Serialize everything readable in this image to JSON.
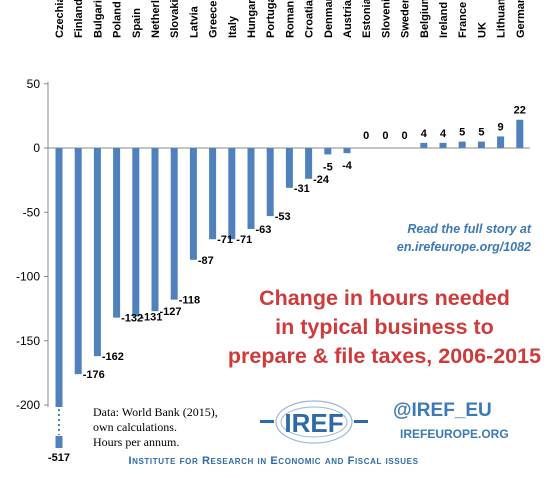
{
  "chart_data": {
    "type": "bar",
    "title": "Change in hours needed in typical business to prepare & file taxes, 2006-2015",
    "title_lines": [
      "Change in hours needed",
      "in typical business to",
      "prepare & file taxes, 2006-2015"
    ],
    "categories": [
      "Czechia",
      "Finland",
      "Bulgaria",
      "Poland",
      "Spain",
      "Netherlands",
      "Slovakia",
      "Latvia",
      "Greece",
      "Italy",
      "Hungary",
      "Portugal",
      "Romania",
      "Croatia",
      "Denmark",
      "Austria",
      "Estonia",
      "Slovenia",
      "Sweden",
      "Belgium",
      "Ireland",
      "France",
      "UK",
      "Lithuania",
      "Germany"
    ],
    "values": [
      -517,
      -176,
      -162,
      -132,
      -131,
      -127,
      -118,
      -87,
      -71,
      -71,
      -63,
      -53,
      -31,
      -24,
      -5,
      -4,
      0,
      0,
      0,
      4,
      4,
      5,
      5,
      9,
      22
    ],
    "labels": [
      "-517",
      "-176",
      "-162",
      "-132",
      "-131",
      "-127",
      "-118",
      "-87",
      "-71",
      "-71",
      "-63",
      "-53",
      "-31",
      "-24",
      "-5",
      "-4",
      "0",
      "0",
      "0",
      "4",
      "4",
      "5",
      "5",
      "9",
      "22"
    ],
    "ylim": [
      -200,
      50
    ],
    "yticks": [
      50,
      0,
      -50,
      -100,
      -150,
      -200
    ],
    "ytick_labels": [
      "50",
      "0",
      "-50",
      "-100",
      "-150",
      "-200"
    ],
    "axis_break": true,
    "bar_color": "#4f81bd",
    "grid": false,
    "legend": "none"
  },
  "annotations": {
    "read_line1": "Read the full story at",
    "read_line2": "en.irefeurope.org/1082",
    "source_lines": [
      "Data: World Bank (2015),",
      "own calculations.",
      "Hours per annum."
    ]
  },
  "branding": {
    "logo_text": "IREF",
    "handle": "@IREF_EU",
    "website": "IREFEUROPE.ORG",
    "institute": "Institute for Research in Economic and Fiscal issues"
  },
  "colors": {
    "title": "#d03a3a",
    "link": "#3c79b8",
    "bars": "#4f81bd"
  }
}
